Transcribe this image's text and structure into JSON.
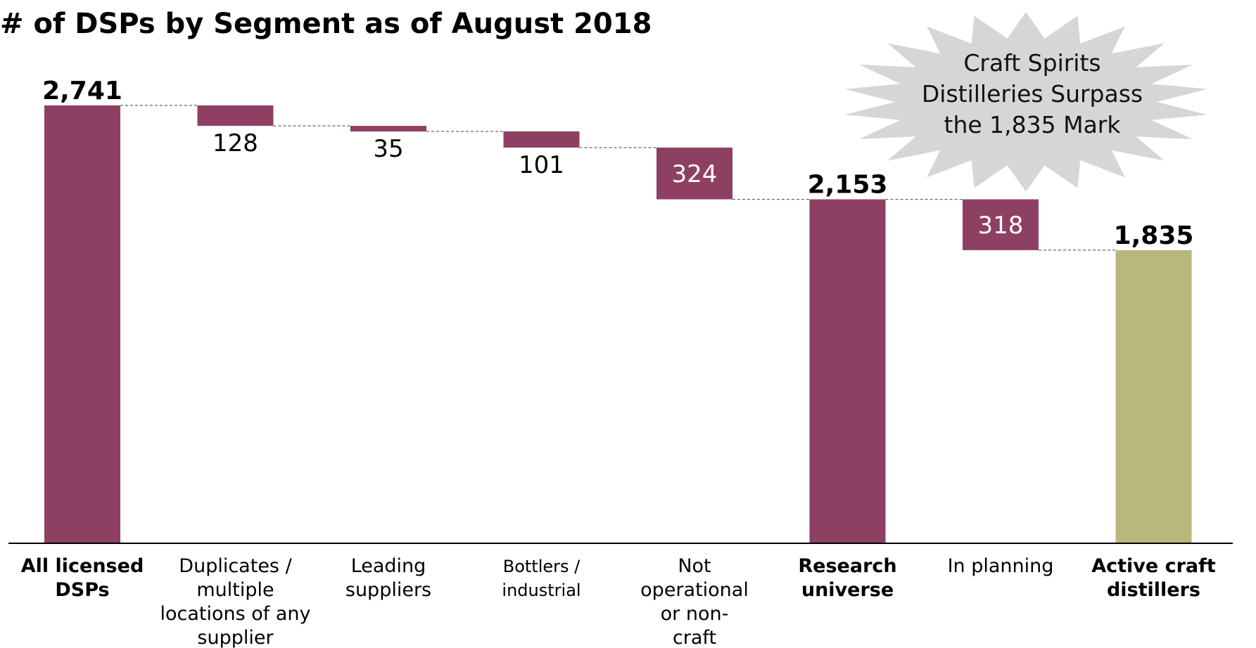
{
  "title": "# of DSPs by Segment as of August 2018",
  "callout": {
    "lines": [
      "Craft Spirits",
      "Distilleries Surpass",
      "the 1,835 Mark"
    ]
  },
  "colors": {
    "bar": "#8e4063",
    "final_bar": "#b9b77b",
    "callout_fill": "#d6d6d6",
    "connector": "#666666",
    "axis": "#000000"
  },
  "chart_data": {
    "type": "waterfall",
    "title": "# of DSPs by Segment as of August 2018",
    "ylim": [
      0,
      2741
    ],
    "grid": false,
    "legend": "none",
    "steps": [
      {
        "label_lines": [
          "All licensed",
          "DSPs"
        ],
        "value": 2741,
        "kind": "total",
        "display": "2,741",
        "label_style": "bold"
      },
      {
        "label_lines": [
          "Duplicates /",
          "multiple",
          "locations of any",
          "supplier"
        ],
        "value": -128,
        "kind": "delta",
        "display": "128",
        "label_style": "normal"
      },
      {
        "label_lines": [
          "Leading",
          "suppliers"
        ],
        "value": -35,
        "kind": "delta",
        "display": "35",
        "label_style": "normal"
      },
      {
        "label_lines": [
          "Bottlers /",
          "industrial"
        ],
        "value": -101,
        "kind": "delta",
        "display": "101",
        "label_style": "small"
      },
      {
        "label_lines": [
          "Not",
          "operational",
          "or non-",
          "craft"
        ],
        "value": -324,
        "kind": "delta",
        "display": "324",
        "label_style": "normal"
      },
      {
        "label_lines": [
          "Research",
          "universe"
        ],
        "value": 2153,
        "kind": "total",
        "display": "2,153",
        "label_style": "bold"
      },
      {
        "label_lines": [
          "In planning"
        ],
        "value": -318,
        "kind": "delta",
        "display": "318",
        "label_style": "normal"
      },
      {
        "label_lines": [
          "Active craft",
          "distillers"
        ],
        "value": 1835,
        "kind": "total",
        "display": "1,835",
        "label_style": "bold",
        "highlight": true
      }
    ]
  }
}
